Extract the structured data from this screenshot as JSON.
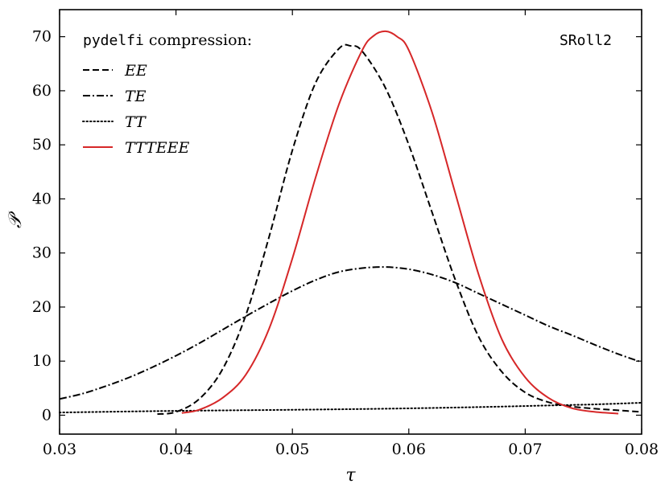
{
  "chart_data": {
    "type": "line",
    "xlabel": "τ",
    "ylabel": "𝒫",
    "xlim": [
      0.03,
      0.08
    ],
    "ylim": [
      -3.5,
      75
    ],
    "xticks": [
      0.03,
      0.04,
      0.05,
      0.06,
      0.07,
      0.08
    ],
    "xtick_labels": [
      "0.03",
      "0.04",
      "0.05",
      "0.06",
      "0.07",
      "0.08"
    ],
    "yticks": [
      0,
      10,
      20,
      30,
      40,
      50,
      60,
      70
    ],
    "ytick_labels": [
      "0",
      "10",
      "20",
      "30",
      "40",
      "50",
      "60",
      "70"
    ],
    "grid": false,
    "legend": {
      "placement": "top-left",
      "title_mono": "pydelfi",
      "title_rest": " compression:"
    },
    "annotation": "SRoll2",
    "series": [
      {
        "name": "EE",
        "style": "dashed",
        "color": "#000000",
        "x": [
          0.0384,
          0.04,
          0.042,
          0.044,
          0.046,
          0.048,
          0.05,
          0.052,
          0.054,
          0.055,
          0.056,
          0.058,
          0.06,
          0.062,
          0.064,
          0.066,
          0.068,
          0.07,
          0.072,
          0.074,
          0.076,
          0.078,
          0.08
        ],
        "y": [
          0.2,
          0.6,
          3.0,
          8.5,
          18.5,
          33.0,
          49.0,
          61.5,
          67.8,
          68.3,
          67.3,
          60.5,
          50.0,
          37.5,
          25.0,
          14.5,
          8.0,
          4.2,
          2.4,
          1.6,
          1.2,
          0.9,
          0.6
        ]
      },
      {
        "name": "TE",
        "style": "dashdot",
        "color": "#000000",
        "x": [
          0.03,
          0.032,
          0.034,
          0.036,
          0.038,
          0.04,
          0.042,
          0.044,
          0.046,
          0.048,
          0.05,
          0.052,
          0.054,
          0.056,
          0.058,
          0.06,
          0.062,
          0.064,
          0.066,
          0.068,
          0.07,
          0.072,
          0.074,
          0.076,
          0.078,
          0.08
        ],
        "y": [
          3.0,
          4.0,
          5.4,
          7.0,
          8.9,
          11.0,
          13.3,
          15.8,
          18.3,
          20.7,
          23.0,
          25.0,
          26.5,
          27.2,
          27.4,
          27.0,
          26.0,
          24.5,
          22.5,
          20.5,
          18.5,
          16.5,
          14.8,
          13.0,
          11.3,
          9.8
        ]
      },
      {
        "name": "TT",
        "style": "dotted",
        "color": "#000000",
        "x": [
          0.03,
          0.04,
          0.05,
          0.058,
          0.066,
          0.072,
          0.076,
          0.08
        ],
        "y": [
          0.5,
          0.8,
          1.0,
          1.2,
          1.5,
          1.8,
          2.0,
          2.3
        ]
      },
      {
        "name": "TTTEEE",
        "style": "solid",
        "color": "#d62728",
        "x": [
          0.0405,
          0.042,
          0.044,
          0.046,
          0.048,
          0.05,
          0.052,
          0.054,
          0.056,
          0.057,
          0.058,
          0.059,
          0.06,
          0.062,
          0.064,
          0.066,
          0.068,
          0.07,
          0.072,
          0.074,
          0.076,
          0.078
        ],
        "y": [
          0.4,
          1.0,
          3.2,
          7.5,
          16.0,
          29.0,
          44.0,
          57.5,
          67.5,
          70.2,
          71.0,
          70.0,
          67.5,
          56.0,
          41.0,
          26.0,
          14.0,
          7.0,
          3.2,
          1.3,
          0.6,
          0.3
        ]
      }
    ]
  }
}
